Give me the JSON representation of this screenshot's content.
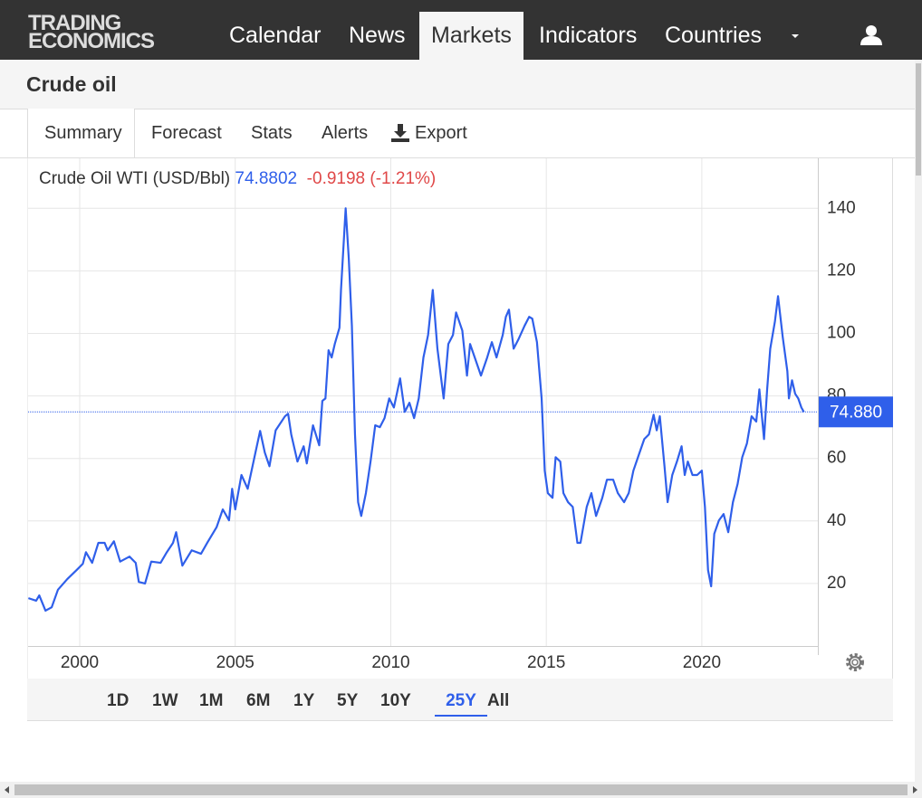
{
  "header": {
    "logo": [
      "TRADING",
      "ECONOMICS"
    ],
    "nav": [
      "Calendar",
      "News",
      "Markets",
      "Indicators",
      "Countries"
    ],
    "active_nav": 2
  },
  "page_title": "Crude oil",
  "tabs": [
    "Summary",
    "Forecast",
    "Stats",
    "Alerts",
    "Export"
  ],
  "active_tab": 0,
  "quote": {
    "name": "Crude Oil WTI (USD/Bbl)",
    "last": 74.8802,
    "change": -0.9198,
    "change_pct": "(-1.21%)"
  },
  "chart_data": {
    "type": "line",
    "x": [
      1998.35,
      1998.6,
      1998.7,
      1998.9,
      1999.1,
      1999.3,
      1999.6,
      1999.9,
      2000.1,
      2000.2,
      2000.4,
      2000.6,
      2000.8,
      2000.9,
      2001.1,
      2001.3,
      2001.6,
      2001.8,
      2001.9,
      2002.1,
      2002.3,
      2002.6,
      2002.8,
      2003.0,
      2003.1,
      2003.3,
      2003.6,
      2003.9,
      2004.1,
      2004.4,
      2004.6,
      2004.8,
      2004.9,
      2005.0,
      2005.2,
      2005.4,
      2005.65,
      2005.8,
      2005.95,
      2006.1,
      2006.3,
      2006.6,
      2006.7,
      2006.8,
      2007.0,
      2007.2,
      2007.3,
      2007.5,
      2007.7,
      2007.8,
      2007.9,
      2008.0,
      2008.1,
      2008.2,
      2008.35,
      2008.4,
      2008.55,
      2008.65,
      2008.75,
      2008.85,
      2008.95,
      2009.05,
      2009.2,
      2009.35,
      2009.5,
      2009.65,
      2009.8,
      2009.95,
      2010.1,
      2010.3,
      2010.45,
      2010.6,
      2010.75,
      2010.9,
      2011.05,
      2011.2,
      2011.35,
      2011.5,
      2011.7,
      2011.85,
      2012.0,
      2012.1,
      2012.3,
      2012.45,
      2012.55,
      2012.7,
      2012.9,
      2013.1,
      2013.25,
      2013.4,
      2013.6,
      2013.7,
      2013.8,
      2013.95,
      2014.1,
      2014.3,
      2014.45,
      2014.55,
      2014.7,
      2014.85,
      2014.95,
      2015.05,
      2015.2,
      2015.3,
      2015.45,
      2015.55,
      2015.7,
      2015.85,
      2016.0,
      2016.1,
      2016.3,
      2016.45,
      2016.6,
      2016.8,
      2016.95,
      2017.15,
      2017.3,
      2017.5,
      2017.65,
      2017.8,
      2018.0,
      2018.15,
      2018.3,
      2018.45,
      2018.55,
      2018.65,
      2018.8,
      2018.9,
      2019.05,
      2019.2,
      2019.35,
      2019.45,
      2019.55,
      2019.7,
      2019.85,
      2020.0,
      2020.1,
      2020.2,
      2020.3,
      2020.4,
      2020.55,
      2020.7,
      2020.85,
      2021.0,
      2021.15,
      2021.3,
      2021.45,
      2021.6,
      2021.75,
      2021.85,
      2022.0,
      2022.1,
      2022.2,
      2022.35,
      2022.45,
      2022.6,
      2022.75,
      2022.8,
      2022.9,
      2023.0,
      2023.1,
      2023.2,
      2023.28
    ],
    "series": [
      {
        "color": "#2f5fea",
        "values": [
          15.3,
          14.5,
          16.2,
          11.3,
          12.4,
          18,
          21.4,
          24.3,
          26.3,
          30,
          26.6,
          33,
          33,
          30.6,
          33.5,
          27,
          28.6,
          26.6,
          20.5,
          20,
          27,
          26.6,
          30,
          33,
          36.4,
          25.7,
          30.6,
          29.5,
          33,
          38,
          43.7,
          40.2,
          50.3,
          43.7,
          54.7,
          50.3,
          61.9,
          68.8,
          61.9,
          57.5,
          69,
          73.5,
          74.3,
          67.7,
          59,
          63.9,
          58.4,
          70.6,
          64.2,
          78.4,
          79.2,
          94.6,
          92.3,
          96.6,
          101.8,
          113.9,
          140,
          124,
          102.4,
          67.7,
          46,
          41.6,
          48.9,
          59,
          70.6,
          70,
          72.9,
          79.2,
          76.3,
          85.6,
          74.9,
          77.8,
          72.9,
          79.2,
          92.3,
          99.5,
          113.9,
          95.1,
          79.2,
          96.6,
          99.5,
          106.7,
          100.9,
          86.5,
          96.6,
          92.3,
          86.5,
          92.3,
          97.2,
          92.3,
          99.5,
          105.3,
          107.6,
          95.1,
          98,
          102.4,
          105.3,
          104.7,
          97.2,
          79.2,
          56.1,
          48.9,
          47.4,
          60.4,
          59,
          48.9,
          46,
          44.5,
          33,
          33,
          44.5,
          48.9,
          41.6,
          47.4,
          53.2,
          53.2,
          48.9,
          46,
          48.9,
          56.1,
          61.9,
          66.2,
          67.7,
          74,
          69,
          73.5,
          57.5,
          46,
          54.7,
          59,
          63.9,
          54.7,
          59,
          54.7,
          54.7,
          56.1,
          44.5,
          24.3,
          19.1,
          35.9,
          40.2,
          42.2,
          36.4,
          46,
          51.8,
          60.4,
          64.8,
          73.5,
          71.8,
          82.1,
          66.2,
          82.1,
          95.1,
          103.8,
          111.9,
          98.9,
          87.9,
          79.2,
          85,
          80.7,
          79.2,
          76.3,
          74.88
        ]
      }
    ],
    "current": {
      "value": 74.88,
      "label": "74.880"
    },
    "xlim": [
      1998.34,
      2023.73
    ],
    "ylim": [
      0,
      156
    ],
    "xticks": [
      2000,
      2005,
      2010,
      2015,
      2020
    ],
    "yticks": [
      20,
      40,
      60,
      80,
      100,
      120,
      140
    ],
    "grid": true
  },
  "ranges": [
    "1D",
    "1W",
    "1M",
    "6M",
    "1Y",
    "5Y",
    "10Y",
    "25Y",
    "All"
  ],
  "active_range": 7
}
